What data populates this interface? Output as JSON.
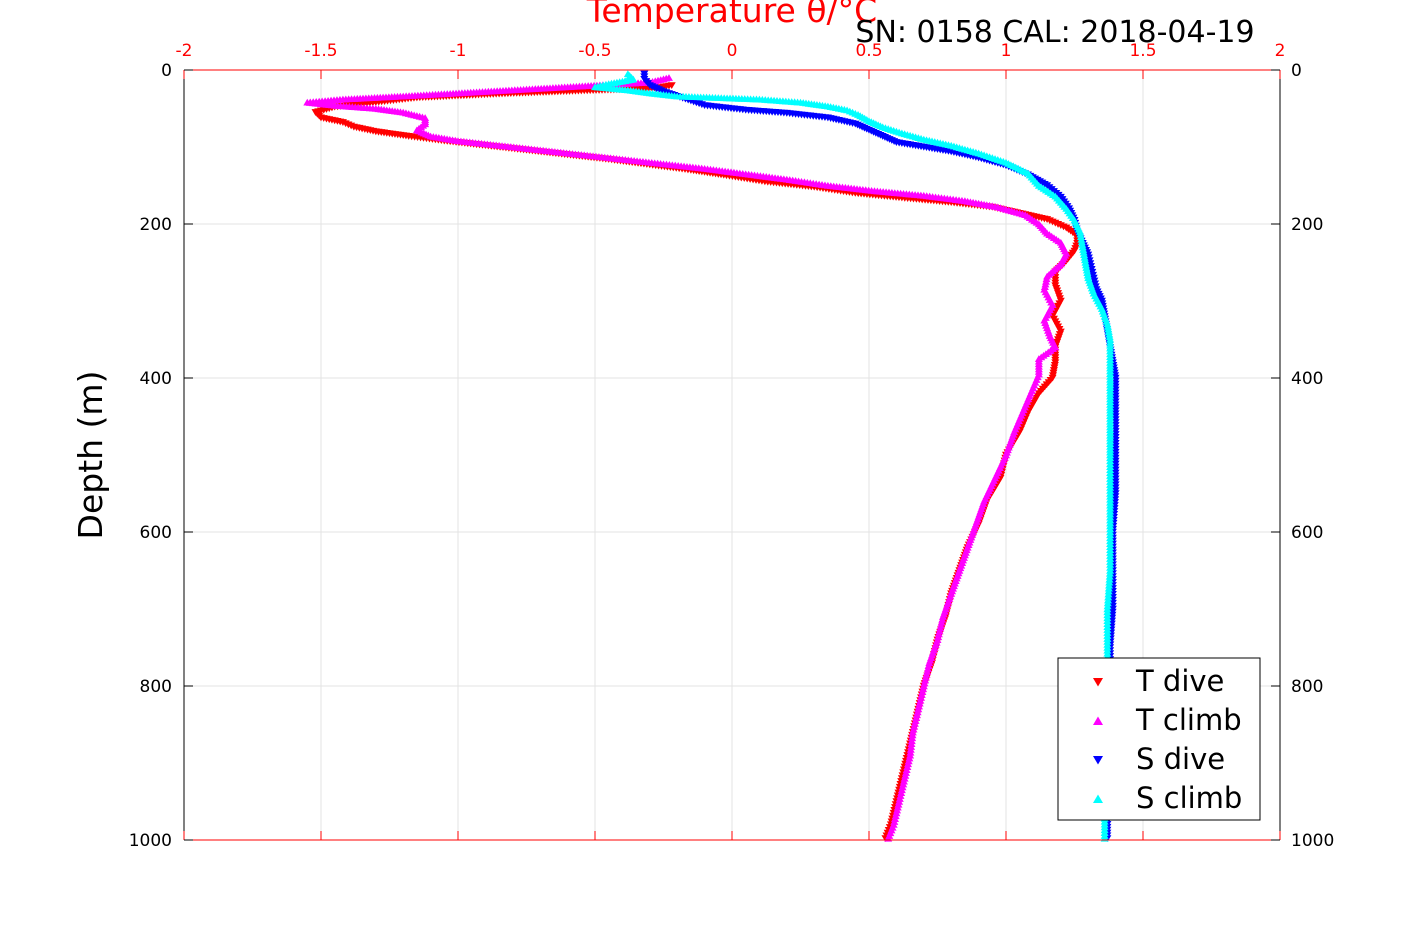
{
  "chart_data": {
    "type": "scatter",
    "title": "SN: 0158  CAL: 2018-04-19",
    "xlabel": "Temperature θ/°C",
    "ylabel": "Depth (m)",
    "xlim": [
      -2,
      2
    ],
    "ylim": [
      0,
      1000
    ],
    "y_reversed": true,
    "x_axis_position": "top",
    "right_axis_mirrors_left": true,
    "grid": true,
    "xticks": [
      -2,
      -1.5,
      -1,
      -0.5,
      0,
      0.5,
      1,
      1.5,
      2
    ],
    "xtick_labels": [
      "-2",
      "-1.5",
      "-1",
      "-0.5",
      "0",
      "0.5",
      "1",
      "1.5",
      "2"
    ],
    "yticks": [
      0,
      200,
      400,
      600,
      800,
      1000
    ],
    "ytick_labels": [
      "0",
      "200",
      "400",
      "600",
      "800",
      "1000"
    ],
    "legend_placement": "bottom-right",
    "series": [
      {
        "name": "T dive",
        "marker": "triangle-down",
        "color": "#ff0000",
        "points": [
          [
            -0.22,
            20
          ],
          [
            -0.28,
            24
          ],
          [
            -0.55,
            27
          ],
          [
            -0.85,
            31
          ],
          [
            -1.15,
            36
          ],
          [
            -1.3,
            42
          ],
          [
            -1.45,
            48
          ],
          [
            -1.52,
            55
          ],
          [
            -1.5,
            62
          ],
          [
            -1.42,
            68
          ],
          [
            -1.38,
            74
          ],
          [
            -1.3,
            80
          ],
          [
            -1.18,
            86
          ],
          [
            -1.05,
            92
          ],
          [
            -0.9,
            98
          ],
          [
            -0.75,
            104
          ],
          [
            -0.6,
            110
          ],
          [
            -0.45,
            116
          ],
          [
            -0.3,
            123
          ],
          [
            -0.15,
            130
          ],
          [
            -0.02,
            137
          ],
          [
            0.12,
            145
          ],
          [
            0.3,
            152
          ],
          [
            0.45,
            160
          ],
          [
            0.62,
            166
          ],
          [
            0.8,
            172
          ],
          [
            0.95,
            178
          ],
          [
            1.05,
            186
          ],
          [
            1.15,
            194
          ],
          [
            1.22,
            205
          ],
          [
            1.26,
            215
          ],
          [
            1.26,
            225
          ],
          [
            1.25,
            235
          ],
          [
            1.22,
            248
          ],
          [
            1.18,
            262
          ],
          [
            1.18,
            280
          ],
          [
            1.2,
            300
          ],
          [
            1.17,
            320
          ],
          [
            1.2,
            340
          ],
          [
            1.18,
            360
          ],
          [
            1.18,
            380
          ],
          [
            1.17,
            400
          ],
          [
            1.12,
            420
          ],
          [
            1.08,
            445
          ],
          [
            1.05,
            470
          ],
          [
            1.0,
            500
          ],
          [
            0.98,
            530
          ],
          [
            0.93,
            560
          ],
          [
            0.9,
            590
          ],
          [
            0.86,
            620
          ],
          [
            0.83,
            650
          ],
          [
            0.8,
            680
          ],
          [
            0.78,
            710
          ],
          [
            0.75,
            740
          ],
          [
            0.73,
            770
          ],
          [
            0.7,
            800
          ],
          [
            0.68,
            830
          ],
          [
            0.66,
            860
          ],
          [
            0.64,
            890
          ],
          [
            0.62,
            920
          ],
          [
            0.6,
            950
          ],
          [
            0.58,
            980
          ],
          [
            0.56,
            998
          ]
        ]
      },
      {
        "name": "T climb",
        "marker": "triangle-up",
        "color": "#ff00ff",
        "points": [
          [
            -0.23,
            10
          ],
          [
            -0.3,
            16
          ],
          [
            -0.6,
            22
          ],
          [
            -0.9,
            28
          ],
          [
            -1.2,
            34
          ],
          [
            -1.42,
            38
          ],
          [
            -1.55,
            42
          ],
          [
            -1.45,
            46
          ],
          [
            -1.3,
            50
          ],
          [
            -1.2,
            55
          ],
          [
            -1.12,
            62
          ],
          [
            -1.12,
            70
          ],
          [
            -1.15,
            78
          ],
          [
            -1.1,
            86
          ],
          [
            -1.0,
            92
          ],
          [
            -0.85,
            98
          ],
          [
            -0.7,
            104
          ],
          [
            -0.55,
            110
          ],
          [
            -0.4,
            116
          ],
          [
            -0.25,
            122
          ],
          [
            -0.1,
            128
          ],
          [
            0.05,
            135
          ],
          [
            0.2,
            142
          ],
          [
            0.35,
            150
          ],
          [
            0.52,
            157
          ],
          [
            0.7,
            163
          ],
          [
            0.85,
            170
          ],
          [
            0.97,
            178
          ],
          [
            1.07,
            188
          ],
          [
            1.12,
            200
          ],
          [
            1.15,
            212
          ],
          [
            1.2,
            224
          ],
          [
            1.22,
            238
          ],
          [
            1.2,
            252
          ],
          [
            1.15,
            268
          ],
          [
            1.14,
            285
          ],
          [
            1.17,
            305
          ],
          [
            1.14,
            325
          ],
          [
            1.16,
            345
          ],
          [
            1.18,
            360
          ],
          [
            1.12,
            375
          ],
          [
            1.12,
            395
          ],
          [
            1.09,
            420
          ],
          [
            1.06,
            445
          ],
          [
            1.03,
            470
          ],
          [
            1.0,
            500
          ],
          [
            0.96,
            530
          ],
          [
            0.92,
            560
          ],
          [
            0.89,
            590
          ],
          [
            0.86,
            620
          ],
          [
            0.83,
            650
          ],
          [
            0.8,
            680
          ],
          [
            0.77,
            710
          ],
          [
            0.75,
            740
          ],
          [
            0.72,
            770
          ],
          [
            0.7,
            800
          ],
          [
            0.68,
            830
          ],
          [
            0.66,
            860
          ],
          [
            0.65,
            890
          ],
          [
            0.63,
            920
          ],
          [
            0.61,
            950
          ],
          [
            0.59,
            980
          ],
          [
            0.57,
            998
          ]
        ]
      },
      {
        "name": "S dive",
        "marker": "triangle-down",
        "color": "#0000ff",
        "points": [
          [
            -0.32,
            5
          ],
          [
            -0.32,
            12
          ],
          [
            -0.3,
            20
          ],
          [
            -0.25,
            28
          ],
          [
            -0.2,
            34
          ],
          [
            -0.15,
            40
          ],
          [
            -0.1,
            46
          ],
          [
            0.05,
            52
          ],
          [
            0.2,
            56
          ],
          [
            0.35,
            62
          ],
          [
            0.45,
            70
          ],
          [
            0.5,
            78
          ],
          [
            0.55,
            86
          ],
          [
            0.6,
            94
          ],
          [
            0.7,
            100
          ],
          [
            0.8,
            106
          ],
          [
            0.9,
            114
          ],
          [
            1.0,
            124
          ],
          [
            1.08,
            136
          ],
          [
            1.15,
            150
          ],
          [
            1.2,
            165
          ],
          [
            1.23,
            180
          ],
          [
            1.25,
            195
          ],
          [
            1.26,
            210
          ],
          [
            1.28,
            225
          ],
          [
            1.3,
            240
          ],
          [
            1.31,
            255
          ],
          [
            1.32,
            270
          ],
          [
            1.33,
            285
          ],
          [
            1.35,
            300
          ],
          [
            1.36,
            320
          ],
          [
            1.37,
            340
          ],
          [
            1.38,
            360
          ],
          [
            1.39,
            380
          ],
          [
            1.4,
            400
          ],
          [
            1.4,
            450
          ],
          [
            1.4,
            500
          ],
          [
            1.4,
            550
          ],
          [
            1.39,
            600
          ],
          [
            1.39,
            650
          ],
          [
            1.39,
            700
          ],
          [
            1.38,
            750
          ],
          [
            1.38,
            800
          ],
          [
            1.38,
            850
          ],
          [
            1.37,
            900
          ],
          [
            1.37,
            950
          ],
          [
            1.37,
            998
          ]
        ]
      },
      {
        "name": "S climb",
        "marker": "triangle-up",
        "color": "#00ffff",
        "points": [
          [
            -0.38,
            5
          ],
          [
            -0.36,
            12
          ],
          [
            -0.45,
            18
          ],
          [
            -0.5,
            22
          ],
          [
            -0.38,
            26
          ],
          [
            -0.3,
            30
          ],
          [
            -0.2,
            34
          ],
          [
            -0.05,
            36
          ],
          [
            0.1,
            38
          ],
          [
            0.25,
            42
          ],
          [
            0.35,
            47
          ],
          [
            0.42,
            52
          ],
          [
            0.46,
            58
          ],
          [
            0.5,
            66
          ],
          [
            0.55,
            74
          ],
          [
            0.62,
            82
          ],
          [
            0.7,
            90
          ],
          [
            0.8,
            98
          ],
          [
            0.9,
            108
          ],
          [
            1.0,
            120
          ],
          [
            1.08,
            134
          ],
          [
            1.12,
            150
          ],
          [
            1.18,
            164
          ],
          [
            1.22,
            180
          ],
          [
            1.25,
            195
          ],
          [
            1.27,
            210
          ],
          [
            1.28,
            230
          ],
          [
            1.29,
            250
          ],
          [
            1.3,
            270
          ],
          [
            1.32,
            290
          ],
          [
            1.35,
            310
          ],
          [
            1.37,
            330
          ],
          [
            1.38,
            350
          ],
          [
            1.38,
            380
          ],
          [
            1.38,
            420
          ],
          [
            1.38,
            460
          ],
          [
            1.38,
            500
          ],
          [
            1.38,
            550
          ],
          [
            1.38,
            600
          ],
          [
            1.38,
            650
          ],
          [
            1.37,
            700
          ],
          [
            1.37,
            750
          ],
          [
            1.37,
            800
          ],
          [
            1.37,
            850
          ],
          [
            1.37,
            900
          ],
          [
            1.36,
            950
          ],
          [
            1.36,
            998
          ]
        ]
      }
    ]
  }
}
